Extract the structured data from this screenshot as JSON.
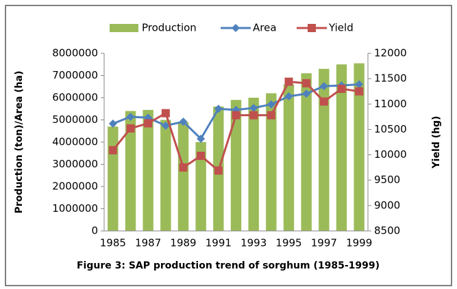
{
  "chart_data": {
    "type": "bar_line",
    "caption": "Figure 3: SAP production trend of sorghum (1985-1999)",
    "y_label": "Production (ton)/Area (ha)",
    "y2_label": "Yield (hg)",
    "categories": [
      "1985",
      null,
      "1987",
      null,
      "1989",
      null,
      "1991",
      null,
      "1993",
      null,
      "1995",
      null,
      "1997",
      null,
      "1999"
    ],
    "series": [
      {
        "name": "Production",
        "type": "bar",
        "color": "#9bbb59",
        "values": [
          4700000,
          5400000,
          5450000,
          5000000,
          4900000,
          4000000,
          5600000,
          5900000,
          6000000,
          6200000,
          6600000,
          7100000,
          7300000,
          7500000,
          7550000
        ]
      },
      {
        "name": "Area",
        "type": "line",
        "marker": "diamond",
        "color": "#4f81bd",
        "values": [
          4830000,
          5140000,
          5100000,
          4740000,
          4920000,
          4150000,
          5500000,
          5450000,
          5540000,
          5700000,
          6060000,
          6180000,
          6520000,
          6550000,
          6600000
        ]
      },
      {
        "name": "Yield",
        "type": "line",
        "marker": "square",
        "axis": "y2",
        "color": "#c0504d",
        "values": [
          10090,
          10520,
          10620,
          10820,
          9750,
          9980,
          9690,
          10780,
          10780,
          10780,
          11440,
          11410,
          11050,
          11300,
          11250
        ]
      }
    ],
    "ylim": [
      0,
      8000000
    ],
    "yticks": [
      0,
      1000000,
      2000000,
      3000000,
      4000000,
      5000000,
      6000000,
      7000000,
      8000000
    ],
    "y2lim": [
      8500,
      12000
    ],
    "y2ticks": [
      8500,
      9000,
      9500,
      10000,
      10500,
      11000,
      11500,
      12000
    ],
    "legend": "top"
  }
}
